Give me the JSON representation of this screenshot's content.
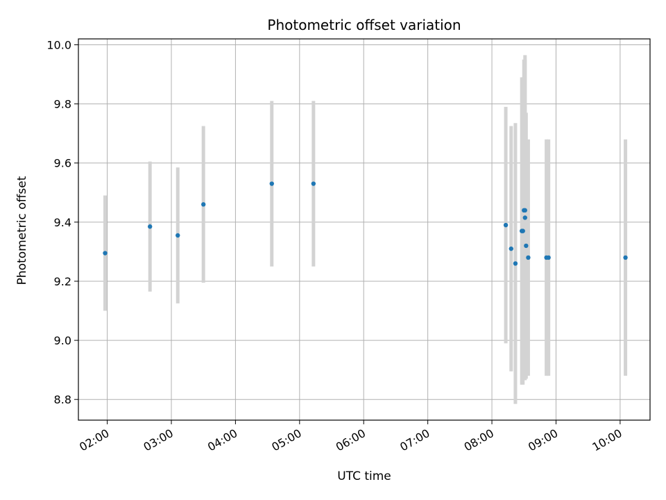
{
  "chart_data": {
    "type": "scatter",
    "title": "Photometric offset variation",
    "xlabel": "UTC time",
    "ylabel": "Photometric offset",
    "x_ticks": [
      "02:00",
      "03:00",
      "04:00",
      "05:00",
      "06:00",
      "07:00",
      "08:00",
      "09:00",
      "10:00"
    ],
    "y_ticks": [
      "8.8",
      "9.0",
      "9.2",
      "9.4",
      "9.6",
      "9.8",
      "10.0"
    ],
    "xlim": [
      "01:33",
      "10:28"
    ],
    "ylim": [
      8.73,
      10.02
    ],
    "grid": true,
    "colors": {
      "marker": "#1f77b4",
      "errorbar": "#d3d3d3",
      "grid": "#b0b0b0"
    },
    "points": [
      {
        "x": "01:58",
        "y": 9.295,
        "err": 0.195
      },
      {
        "x": "02:40",
        "y": 9.385,
        "err": 0.22
      },
      {
        "x": "03:06",
        "y": 9.355,
        "err": 0.23
      },
      {
        "x": "03:30",
        "y": 9.46,
        "err": 0.265
      },
      {
        "x": "04:34",
        "y": 9.53,
        "err": 0.28
      },
      {
        "x": "05:13",
        "y": 9.53,
        "err": 0.28
      },
      {
        "x": "08:13",
        "y": 9.39,
        "err": 0.4
      },
      {
        "x": "08:18",
        "y": 9.31,
        "err": 0.415
      },
      {
        "x": "08:22",
        "y": 9.26,
        "err": 0.475
      },
      {
        "x": "08:28",
        "y": 9.37,
        "err": 0.52
      },
      {
        "x": "08:29",
        "y": 9.37,
        "err": 0.52
      },
      {
        "x": "08:30",
        "y": 9.44,
        "err": 0.51
      },
      {
        "x": "08:31",
        "y": 9.44,
        "err": 0.51
      },
      {
        "x": "08:31",
        "y": 9.415,
        "err": 0.55
      },
      {
        "x": "08:32",
        "y": 9.32,
        "err": 0.45
      },
      {
        "x": "08:34",
        "y": 9.28,
        "err": 0.4
      },
      {
        "x": "08:51",
        "y": 9.28,
        "err": 0.4
      },
      {
        "x": "08:53",
        "y": 9.28,
        "err": 0.4
      },
      {
        "x": "10:05",
        "y": 9.28,
        "err": 0.4
      }
    ]
  }
}
